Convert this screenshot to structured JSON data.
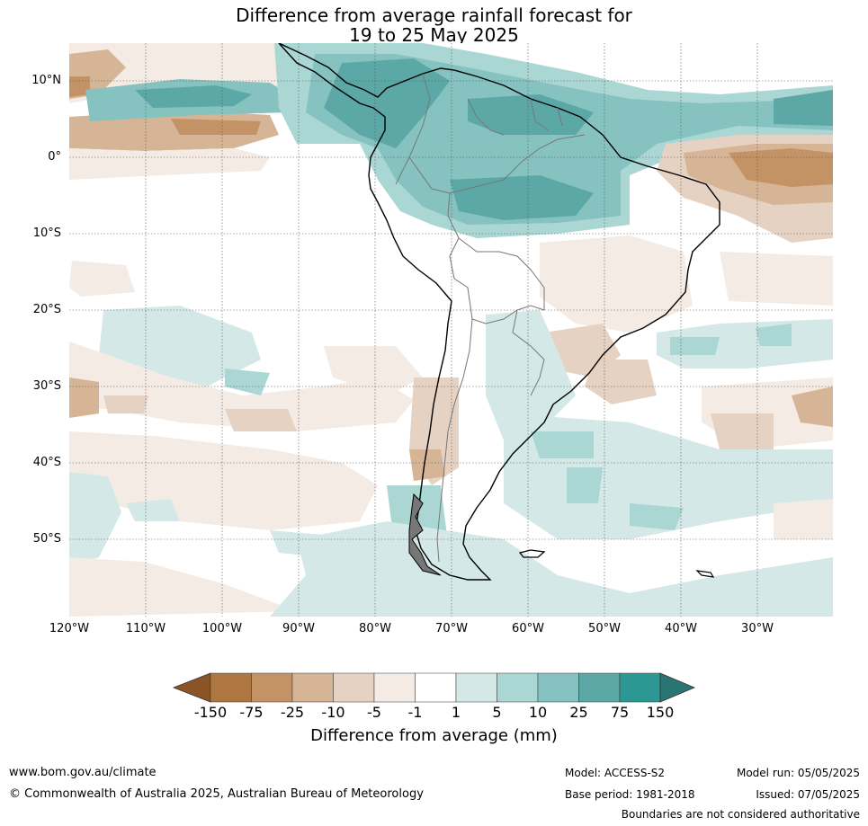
{
  "title": {
    "line1": "Difference from average rainfall forecast for",
    "line2": "19 to 25 May 2025"
  },
  "map": {
    "lat_labels": [
      "10°N",
      "0°",
      "10°S",
      "20°S",
      "30°S",
      "40°S",
      "50°S"
    ],
    "lon_labels": [
      "120°W",
      "110°W",
      "100°W",
      "90°W",
      "80°W",
      "70°W",
      "60°W",
      "50°W",
      "40°W",
      "30°W"
    ],
    "extent": {
      "lon_min": -120,
      "lon_max": -20,
      "lat_min": -60,
      "lat_max": 15
    },
    "gridlines": true,
    "colors": {
      "dry_extreme": "#8a5426",
      "dry_150": "#ae7741",
      "dry_75": "#c39365",
      "dry_25": "#d6b496",
      "dry_10": "#e6d2c2",
      "dry_5": "#f4ebe5",
      "neutral": "#ffffff",
      "wet_5": "#d4e9e7",
      "wet_10": "#aad6d4",
      "wet_25": "#85c2c0",
      "wet_75": "#5ca8a6",
      "wet_150": "#2d9893",
      "wet_extreme": "#2a7471"
    }
  },
  "colorbar": {
    "labels": [
      "-150",
      "-75",
      "-25",
      "-10",
      "-5",
      "-1",
      "1",
      "5",
      "10",
      "25",
      "75",
      "150"
    ],
    "title": "Difference from average (mm)"
  },
  "footer": {
    "website": "www.bom.gov.au/climate",
    "copyright": "© Commonwealth of Australia 2025, Australian Bureau of Meteorology",
    "model": "Model: ACCESS-S2",
    "base_period": "Base period: 1981-2018",
    "model_run": "Model run: 05/05/2025",
    "issued": "Issued: 07/05/2025",
    "disclaimer": "Boundaries are not considered authoritative"
  }
}
